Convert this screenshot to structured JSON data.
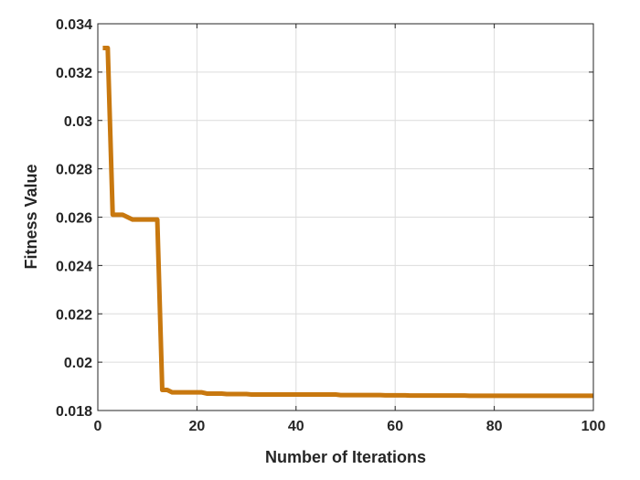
{
  "chart_data": {
    "type": "line",
    "title": "",
    "xlabel": "Number of Iterations",
    "ylabel": "Fitness Value",
    "xlim": [
      0,
      100
    ],
    "ylim": [
      0.018,
      0.034
    ],
    "xticks": [
      0,
      20,
      40,
      60,
      80,
      100
    ],
    "xtick_labels": [
      "0",
      "20",
      "40",
      "60",
      "80",
      "100"
    ],
    "yticks": [
      0.018,
      0.02,
      0.022,
      0.024,
      0.026,
      0.028,
      0.03,
      0.032,
      0.034
    ],
    "ytick_labels": [
      "0.018",
      "0.02",
      "0.022",
      "0.024",
      "0.026",
      "0.028",
      "0.03",
      "0.032",
      "0.034"
    ],
    "grid": true,
    "series": [
      {
        "color": "#C8780F",
        "x": [
          1,
          2,
          3,
          4,
          5,
          6,
          7,
          8,
          9,
          10,
          11,
          12,
          13,
          14,
          15,
          16,
          17,
          18,
          19,
          20,
          21,
          22,
          23,
          24,
          25,
          26,
          27,
          28,
          29,
          30,
          31,
          32,
          33,
          34,
          35,
          36,
          37,
          38,
          39,
          40,
          41,
          42,
          43,
          44,
          45,
          46,
          47,
          48,
          49,
          50,
          51,
          52,
          53,
          54,
          55,
          56,
          57,
          58,
          59,
          60,
          61,
          62,
          63,
          64,
          65,
          66,
          67,
          68,
          69,
          70,
          71,
          72,
          73,
          74,
          75,
          76,
          77,
          78,
          79,
          80,
          81,
          82,
          83,
          84,
          85,
          86,
          87,
          88,
          89,
          90,
          91,
          92,
          93,
          94,
          95,
          96,
          97,
          98,
          99,
          100
        ],
        "y": [
          0.033,
          0.033,
          0.0261,
          0.0261,
          0.0261,
          0.026,
          0.0259,
          0.0259,
          0.0259,
          0.0259,
          0.0259,
          0.0259,
          0.01885,
          0.01885,
          0.01875,
          0.01875,
          0.01875,
          0.01875,
          0.01875,
          0.01875,
          0.01875,
          0.0187,
          0.0187,
          0.0187,
          0.0187,
          0.01868,
          0.01868,
          0.01868,
          0.01868,
          0.01868,
          0.01866,
          0.01866,
          0.01866,
          0.01866,
          0.01866,
          0.01866,
          0.01866,
          0.01866,
          0.01866,
          0.01866,
          0.01866,
          0.01866,
          0.01866,
          0.01866,
          0.01866,
          0.01866,
          0.01866,
          0.01866,
          0.01864,
          0.01864,
          0.01864,
          0.01864,
          0.01864,
          0.01864,
          0.01864,
          0.01864,
          0.01864,
          0.01863,
          0.01863,
          0.01863,
          0.01863,
          0.01863,
          0.01862,
          0.01862,
          0.01862,
          0.01862,
          0.01862,
          0.01862,
          0.01862,
          0.01862,
          0.01862,
          0.01862,
          0.01862,
          0.01862,
          0.01861,
          0.01861,
          0.01861,
          0.01861,
          0.01861,
          0.01861,
          0.01861,
          0.01861,
          0.01861,
          0.01861,
          0.01861,
          0.01861,
          0.01861,
          0.01861,
          0.01861,
          0.01861,
          0.01861,
          0.01861,
          0.01861,
          0.01861,
          0.01861,
          0.01861,
          0.01861,
          0.01861,
          0.01861,
          0.01861
        ]
      }
    ]
  }
}
